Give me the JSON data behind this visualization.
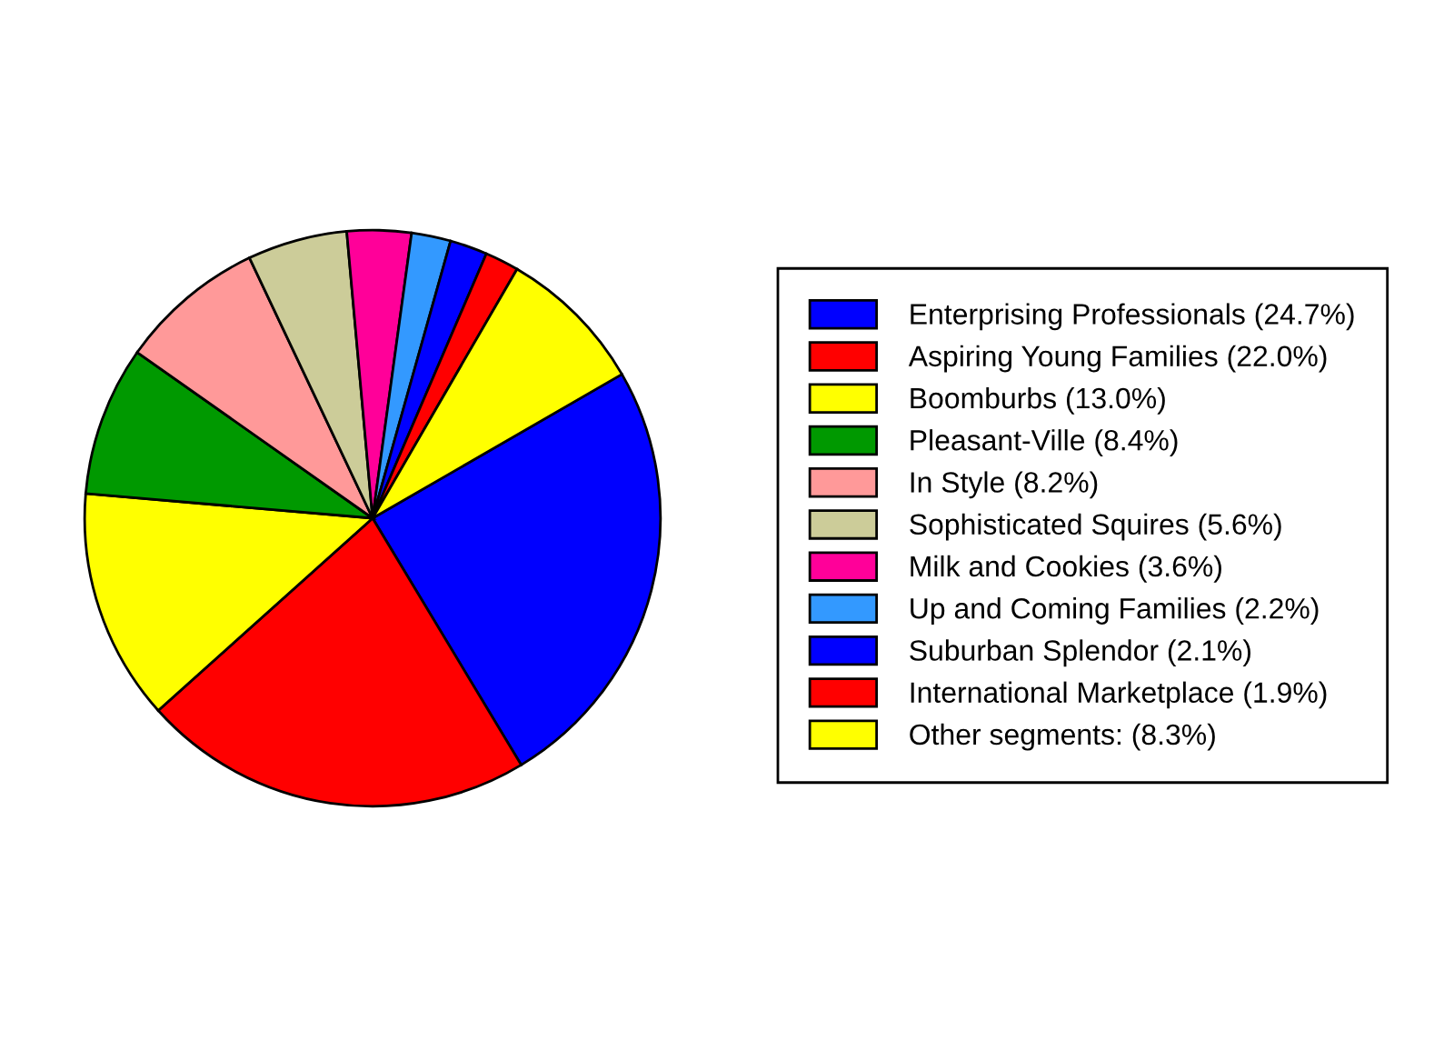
{
  "chart_data": {
    "type": "pie",
    "categories": [
      "Enterprising Professionals (24.7%)",
      "Aspiring Young Families (22.0%)",
      "Boomburbs (13.0%)",
      "Pleasant-Ville (8.4%)",
      "In Style (8.2%)",
      "Sophisticated Squires (5.6%)",
      "Milk and Cookies (3.6%)",
      "Up and Coming Families (2.2%)",
      "Suburban Splendor (2.1%)",
      "International Marketplace (1.9%)",
      "Other segments: (8.3%)"
    ],
    "values": [
      24.7,
      22.0,
      13.0,
      8.4,
      8.2,
      5.6,
      3.6,
      2.2,
      2.1,
      1.9,
      8.3
    ],
    "colors": [
      "#0000ff",
      "#ff0000",
      "#ffff00",
      "#009900",
      "#ff9999",
      "#cccc99",
      "#ff0099",
      "#3399ff",
      "#0000ff",
      "#ff0000",
      "#ffff00"
    ],
    "legend": "right"
  }
}
